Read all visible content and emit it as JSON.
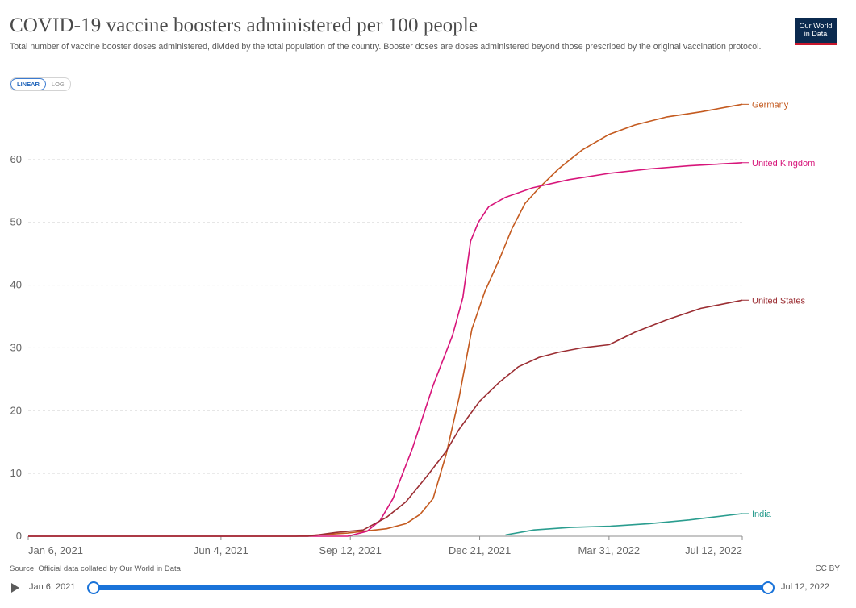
{
  "header": {
    "title": "COVID-19 vaccine boosters administered per 100 people",
    "subtitle": "Total number of vaccine booster doses administered, divided by the total population of the country. Booster doses are doses administered beyond those prescribed by the original vaccination protocol.",
    "logo_line1": "Our World",
    "logo_line2": "in Data"
  },
  "scale_toggle": {
    "linear_label": "LINEAR",
    "log_label": "LOG",
    "selected": "linear"
  },
  "footer": {
    "source": "Source: Official data collated by Our World in Data",
    "license": "CC BY"
  },
  "timeline": {
    "start_label": "Jan 6, 2021",
    "end_label": "Jul 12, 2022"
  },
  "chart_data": {
    "type": "line",
    "title": "COVID-19 vaccine boosters administered per 100 people",
    "xlabel": "",
    "ylabel": "",
    "x_ticks": [
      "Jan 6, 2021",
      "Jun 4, 2021",
      "Sep 12, 2021",
      "Dec 21, 2021",
      "Mar 31, 2022",
      "Jul 12, 2022"
    ],
    "y_ticks": [
      0,
      10,
      20,
      30,
      40,
      50,
      60
    ],
    "xlim": [
      "2021-01-06",
      "2022-07-12"
    ],
    "ylim": [
      0,
      70
    ],
    "grid": "horizontal dashed",
    "legend": "line-end labels",
    "series": [
      {
        "name": "Germany",
        "color": "#c45a1f",
        "points": [
          [
            "2021-01-06",
            0
          ],
          [
            "2021-08-01",
            0
          ],
          [
            "2021-09-10",
            0.5
          ],
          [
            "2021-10-10",
            1.2
          ],
          [
            "2021-10-25",
            2
          ],
          [
            "2021-11-05",
            3.5
          ],
          [
            "2021-11-15",
            6
          ],
          [
            "2021-11-25",
            13
          ],
          [
            "2021-12-05",
            22
          ],
          [
            "2021-12-15",
            33
          ],
          [
            "2021-12-25",
            39
          ],
          [
            "2022-01-05",
            44
          ],
          [
            "2022-01-15",
            49
          ],
          [
            "2022-01-25",
            53
          ],
          [
            "2022-02-05",
            55.5
          ],
          [
            "2022-02-20",
            58.5
          ],
          [
            "2022-03-10",
            61.5
          ],
          [
            "2022-03-31",
            64
          ],
          [
            "2022-04-20",
            65.5
          ],
          [
            "2022-05-15",
            66.8
          ],
          [
            "2022-06-10",
            67.6
          ],
          [
            "2022-07-12",
            68.8
          ]
        ]
      },
      {
        "name": "United Kingdom",
        "color": "#d7157a",
        "points": [
          [
            "2021-01-06",
            0
          ],
          [
            "2021-09-10",
            0
          ],
          [
            "2021-09-25",
            0.8
          ],
          [
            "2021-10-05",
            2.5
          ],
          [
            "2021-10-15",
            6
          ],
          [
            "2021-10-30",
            14
          ],
          [
            "2021-11-15",
            24
          ],
          [
            "2021-11-30",
            32
          ],
          [
            "2021-12-08",
            38
          ],
          [
            "2021-12-14",
            47
          ],
          [
            "2021-12-20",
            50
          ],
          [
            "2021-12-28",
            52.5
          ],
          [
            "2022-01-10",
            54
          ],
          [
            "2022-01-31",
            55.5
          ],
          [
            "2022-02-28",
            56.8
          ],
          [
            "2022-03-31",
            57.8
          ],
          [
            "2022-05-01",
            58.5
          ],
          [
            "2022-06-01",
            59
          ],
          [
            "2022-07-12",
            59.5
          ]
        ]
      },
      {
        "name": "United States",
        "color": "#9b2d32",
        "points": [
          [
            "2021-01-06",
            0
          ],
          [
            "2021-08-10",
            0
          ],
          [
            "2021-09-01",
            0.6
          ],
          [
            "2021-09-22",
            1
          ],
          [
            "2021-10-10",
            3
          ],
          [
            "2021-10-25",
            5.5
          ],
          [
            "2021-11-10",
            9.5
          ],
          [
            "2021-11-25",
            13.5
          ],
          [
            "2021-12-05",
            17
          ],
          [
            "2021-12-21",
            21.5
          ],
          [
            "2022-01-05",
            24.5
          ],
          [
            "2022-01-20",
            27
          ],
          [
            "2022-02-05",
            28.5
          ],
          [
            "2022-02-20",
            29.3
          ],
          [
            "2022-03-10",
            30
          ],
          [
            "2022-03-31",
            30.5
          ],
          [
            "2022-04-20",
            32.5
          ],
          [
            "2022-05-15",
            34.5
          ],
          [
            "2022-06-10",
            36.3
          ],
          [
            "2022-07-12",
            37.6
          ]
        ]
      },
      {
        "name": "India",
        "color": "#2a9d8f",
        "points": [
          [
            "2022-01-10",
            0.2
          ],
          [
            "2022-02-01",
            1
          ],
          [
            "2022-03-01",
            1.4
          ],
          [
            "2022-04-01",
            1.6
          ],
          [
            "2022-05-01",
            2
          ],
          [
            "2022-06-01",
            2.6
          ],
          [
            "2022-07-12",
            3.6
          ]
        ]
      }
    ]
  }
}
